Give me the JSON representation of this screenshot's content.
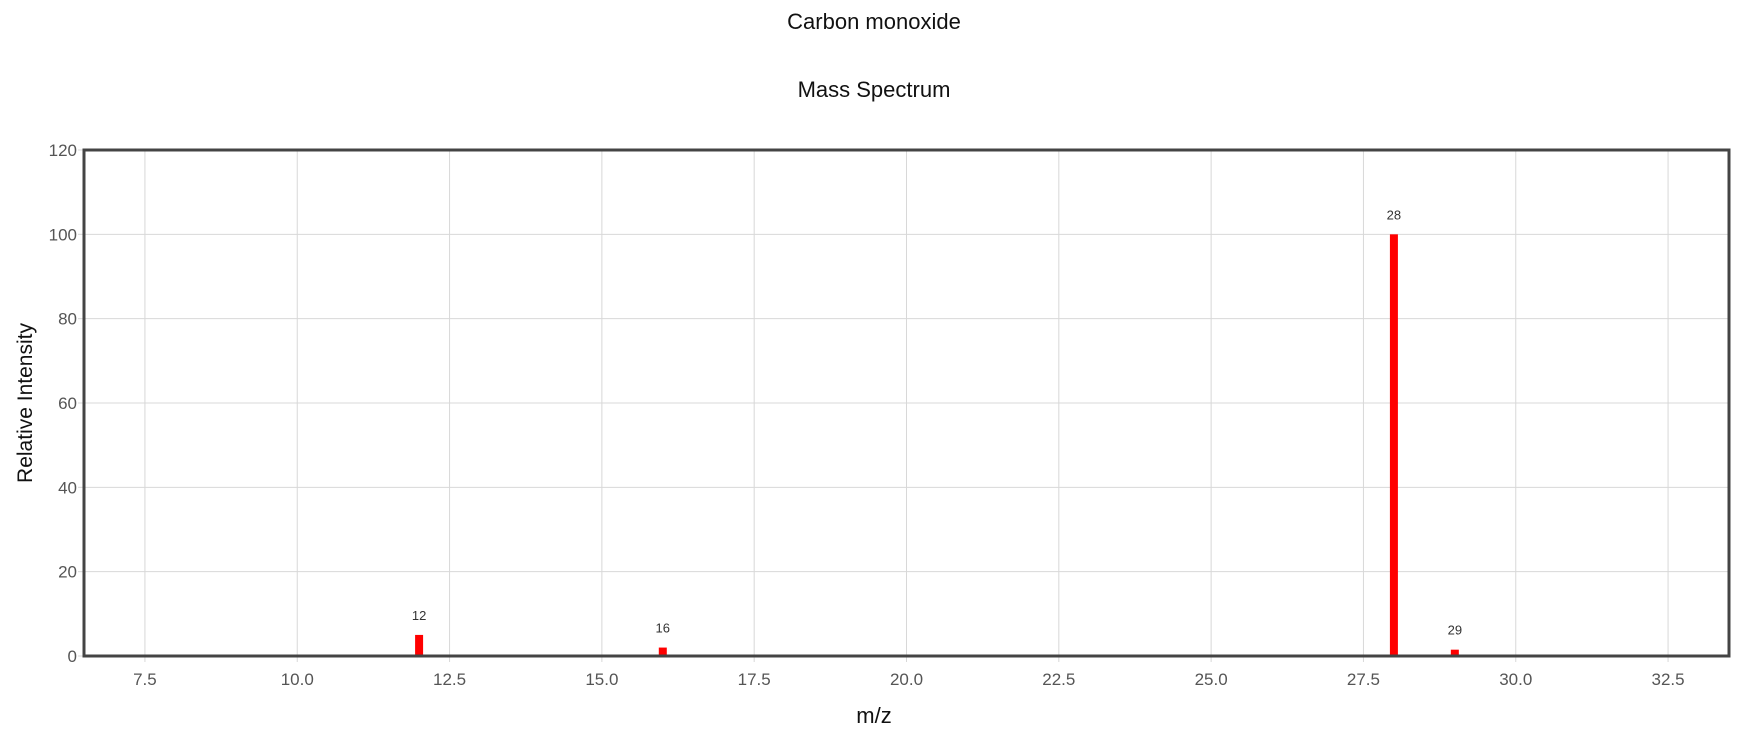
{
  "header": {
    "title": "Carbon monoxide",
    "subtitle": "Mass Spectrum"
  },
  "colors": {
    "bar": "#ff0000",
    "grid": "#d8d8d8",
    "frame": "#444444",
    "tick_text": "#555555"
  },
  "chart_data": {
    "type": "bar",
    "title": "Carbon monoxide",
    "subtitle": "Mass Spectrum",
    "xlabel": "m/z",
    "ylabel": "Relative Intensity",
    "xlim": [
      6.5,
      33.5
    ],
    "ylim": [
      0,
      120
    ],
    "x_ticks": [
      "7.5",
      "10.0",
      "12.5",
      "15.0",
      "17.5",
      "20.0",
      "22.5",
      "25.0",
      "27.5",
      "30.0",
      "32.5"
    ],
    "y_ticks": [
      "0",
      "20",
      "40",
      "60",
      "80",
      "100",
      "120"
    ],
    "grid": true,
    "series": [
      {
        "x": [
          12,
          16,
          28,
          29
        ],
        "values": [
          5,
          2,
          100,
          1.5
        ],
        "labels": [
          "12",
          "16",
          "28",
          "29"
        ]
      }
    ]
  }
}
